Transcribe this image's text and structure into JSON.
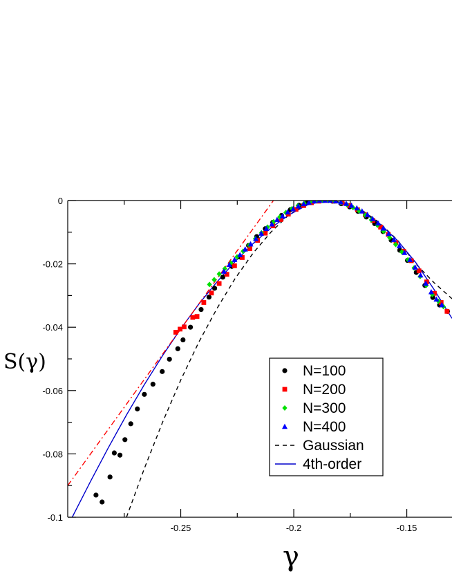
{
  "chart_data": {
    "type": "scatter",
    "xlabel": "γ",
    "ylabel": "S(γ)",
    "xlim": [
      -0.3,
      -0.13
    ],
    "ylim": [
      -0.1,
      0.0
    ],
    "x_ticks": [
      -0.25,
      -0.2,
      -0.15
    ],
    "x_tick_labels": [
      "-0.25",
      "-0.2",
      "-0.15"
    ],
    "y_ticks": [
      0,
      -0.02,
      -0.04,
      -0.06,
      -0.08,
      -0.1
    ],
    "y_tick_labels": [
      "0",
      "-0.02",
      "-0.04",
      "-0.06",
      "-0.08",
      "-0.1"
    ],
    "legend_position": "lower-right",
    "series": [
      {
        "name": "N=100",
        "marker": "circle",
        "color": "#000000",
        "points": [
          [
            -0.2875,
            -0.093
          ],
          [
            -0.2848,
            -0.0952
          ],
          [
            -0.2813,
            -0.0873
          ],
          [
            -0.2794,
            -0.0797
          ],
          [
            -0.2769,
            -0.0804
          ],
          [
            -0.2747,
            -0.0755
          ],
          [
            -0.2721,
            -0.0705
          ],
          [
            -0.2692,
            -0.0658
          ],
          [
            -0.2661,
            -0.0612
          ],
          [
            -0.2623,
            -0.058
          ],
          [
            -0.2582,
            -0.054
          ],
          [
            -0.255,
            -0.0501
          ],
          [
            -0.2513,
            -0.0468
          ],
          [
            -0.249,
            -0.044
          ],
          [
            -0.2457,
            -0.04
          ],
          [
            -0.241,
            -0.0344
          ],
          [
            -0.2375,
            -0.0305
          ],
          [
            -0.235,
            -0.0277
          ],
          [
            -0.2314,
            -0.0242
          ],
          [
            -0.2274,
            -0.0208
          ],
          [
            -0.2241,
            -0.0178
          ],
          [
            -0.22,
            -0.0142
          ],
          [
            -0.2164,
            -0.0114
          ],
          [
            -0.2126,
            -0.0089
          ],
          [
            -0.2093,
            -0.0069
          ],
          [
            -0.2054,
            -0.0047
          ],
          [
            -0.2015,
            -0.0029
          ],
          [
            -0.1977,
            -0.0015
          ],
          [
            -0.194,
            -0.0006
          ],
          [
            -0.1904,
            -0.0001
          ],
          [
            -0.1867,
            0.0
          ],
          [
            -0.1829,
            -0.0002
          ],
          [
            -0.179,
            -0.001
          ],
          [
            -0.1753,
            -0.002
          ],
          [
            -0.1716,
            -0.0034
          ],
          [
            -0.1679,
            -0.0052
          ],
          [
            -0.1642,
            -0.0073
          ],
          [
            -0.1605,
            -0.0098
          ],
          [
            -0.1569,
            -0.0125
          ],
          [
            -0.1531,
            -0.0157
          ],
          [
            -0.1497,
            -0.0189
          ],
          [
            -0.1458,
            -0.0227
          ],
          [
            -0.142,
            -0.0268
          ],
          [
            -0.1385,
            -0.0306
          ],
          [
            -0.1355,
            -0.033
          ],
          [
            -0.132,
            -0.035
          ]
        ]
      },
      {
        "name": "N=200",
        "marker": "square",
        "color": "#ff0000",
        "points": [
          [
            -0.2522,
            -0.0416
          ],
          [
            -0.2503,
            -0.0406
          ],
          [
            -0.2485,
            -0.0399
          ],
          [
            -0.2447,
            -0.0369
          ],
          [
            -0.2428,
            -0.0366
          ],
          [
            -0.2398,
            -0.0322
          ],
          [
            -0.2364,
            -0.0292
          ],
          [
            -0.233,
            -0.0262
          ],
          [
            -0.2296,
            -0.0233
          ],
          [
            -0.2262,
            -0.0206
          ],
          [
            -0.2228,
            -0.018
          ],
          [
            -0.2194,
            -0.0152
          ],
          [
            -0.216,
            -0.0126
          ],
          [
            -0.2126,
            -0.0103
          ],
          [
            -0.2092,
            -0.008
          ],
          [
            -0.2058,
            -0.006
          ],
          [
            -0.2024,
            -0.0043
          ],
          [
            -0.199,
            -0.0028
          ],
          [
            -0.1956,
            -0.0016
          ],
          [
            -0.1922,
            -0.0007
          ],
          [
            -0.1888,
            -0.0002
          ],
          [
            -0.1854,
            0.0
          ],
          [
            -0.182,
            -0.0002
          ],
          [
            -0.1786,
            -0.0007
          ],
          [
            -0.1752,
            -0.0016
          ],
          [
            -0.1718,
            -0.0029
          ],
          [
            -0.1684,
            -0.0045
          ],
          [
            -0.165,
            -0.0063
          ],
          [
            -0.1616,
            -0.0084
          ],
          [
            -0.1582,
            -0.0107
          ],
          [
            -0.1548,
            -0.0133
          ],
          [
            -0.1514,
            -0.016
          ],
          [
            -0.148,
            -0.019
          ],
          [
            -0.1446,
            -0.0222
          ],
          [
            -0.1412,
            -0.0257
          ],
          [
            -0.1378,
            -0.0293
          ],
          [
            -0.1348,
            -0.0322
          ],
          [
            -0.1322,
            -0.035
          ]
        ]
      },
      {
        "name": "N=300",
        "marker": "diamond",
        "color": "#00e000",
        "points": [
          [
            -0.2373,
            -0.0265
          ],
          [
            -0.2352,
            -0.025
          ],
          [
            -0.233,
            -0.0232
          ],
          [
            -0.2305,
            -0.0215
          ],
          [
            -0.2278,
            -0.0197
          ],
          [
            -0.2251,
            -0.0178
          ],
          [
            -0.2224,
            -0.016
          ],
          [
            -0.2197,
            -0.0141
          ],
          [
            -0.217,
            -0.0121
          ],
          [
            -0.2143,
            -0.0102
          ],
          [
            -0.2116,
            -0.0084
          ],
          [
            -0.2089,
            -0.0067
          ],
          [
            -0.2062,
            -0.0052
          ],
          [
            -0.2035,
            -0.0038
          ],
          [
            -0.2008,
            -0.0026
          ],
          [
            -0.1981,
            -0.0016
          ],
          [
            -0.1954,
            -0.0009
          ],
          [
            -0.1927,
            -0.0004
          ],
          [
            -0.19,
            -0.0001
          ],
          [
            -0.1873,
            0.0
          ],
          [
            -0.1846,
            0.0
          ],
          [
            -0.1819,
            -0.0002
          ],
          [
            -0.1792,
            -0.0007
          ],
          [
            -0.1765,
            -0.0013
          ],
          [
            -0.1738,
            -0.0022
          ],
          [
            -0.1711,
            -0.0033
          ],
          [
            -0.1684,
            -0.0046
          ],
          [
            -0.1657,
            -0.0061
          ],
          [
            -0.163,
            -0.0078
          ],
          [
            -0.1603,
            -0.0097
          ],
          [
            -0.1576,
            -0.0117
          ],
          [
            -0.1549,
            -0.0139
          ],
          [
            -0.1522,
            -0.0162
          ],
          [
            -0.1495,
            -0.0187
          ],
          [
            -0.1468,
            -0.0213
          ],
          [
            -0.1441,
            -0.024
          ],
          [
            -0.1414,
            -0.0268
          ],
          [
            -0.1387,
            -0.0297
          ],
          [
            -0.136,
            -0.0318
          ],
          [
            -0.1338,
            -0.0335
          ]
        ]
      },
      {
        "name": "N=400",
        "marker": "triangle",
        "color": "#0000ff",
        "points": [
          [
            -0.2309,
            -0.0224
          ],
          [
            -0.2285,
            -0.0203
          ],
          [
            -0.2262,
            -0.0187
          ],
          [
            -0.2238,
            -0.0172
          ],
          [
            -0.2215,
            -0.0154
          ],
          [
            -0.2191,
            -0.0138
          ],
          [
            -0.2168,
            -0.0121
          ],
          [
            -0.2144,
            -0.0104
          ],
          [
            -0.2121,
            -0.0089
          ],
          [
            -0.2097,
            -0.0075
          ],
          [
            -0.2074,
            -0.0061
          ],
          [
            -0.205,
            -0.0049
          ],
          [
            -0.2027,
            -0.0037
          ],
          [
            -0.2003,
            -0.0027
          ],
          [
            -0.198,
            -0.0018
          ],
          [
            -0.1956,
            -0.0011
          ],
          [
            -0.1933,
            -0.0006
          ],
          [
            -0.1909,
            -0.0002
          ],
          [
            -0.1886,
            0.0
          ],
          [
            -0.1862,
            0.0
          ],
          [
            -0.1839,
            0.0
          ],
          [
            -0.1815,
            -0.0002
          ],
          [
            -0.1792,
            -0.0005
          ],
          [
            -0.1768,
            -0.001
          ],
          [
            -0.1745,
            -0.0016
          ],
          [
            -0.1721,
            -0.0024
          ],
          [
            -0.1698,
            -0.0034
          ],
          [
            -0.1674,
            -0.0045
          ],
          [
            -0.1651,
            -0.0058
          ],
          [
            -0.1627,
            -0.0072
          ],
          [
            -0.1604,
            -0.0088
          ],
          [
            -0.158,
            -0.0105
          ],
          [
            -0.1557,
            -0.0124
          ],
          [
            -0.1533,
            -0.0144
          ],
          [
            -0.151,
            -0.0165
          ],
          [
            -0.1486,
            -0.0187
          ],
          [
            -0.1463,
            -0.0211
          ],
          [
            -0.1439,
            -0.0236
          ],
          [
            -0.1416,
            -0.0262
          ],
          [
            -0.1392,
            -0.0289
          ],
          [
            -0.1369,
            -0.0312
          ],
          [
            -0.1345,
            -0.033
          ]
        ]
      },
      {
        "name": "Gaussian",
        "line": "dashed",
        "color": "#000000",
        "points": [
          [
            -0.274,
            -0.1
          ],
          [
            -0.266,
            -0.0844
          ],
          [
            -0.258,
            -0.0699
          ],
          [
            -0.25,
            -0.0567
          ],
          [
            -0.242,
            -0.0447
          ],
          [
            -0.234,
            -0.0341
          ],
          [
            -0.226,
            -0.0247
          ],
          [
            -0.218,
            -0.0166
          ],
          [
            -0.21,
            -0.0099
          ],
          [
            -0.202,
            -0.0044
          ],
          [
            -0.194,
            -0.0011
          ],
          [
            -0.186,
            0.0
          ],
          [
            -0.178,
            -0.0006
          ],
          [
            -0.17,
            -0.003
          ],
          [
            -0.162,
            -0.007
          ],
          [
            -0.154,
            -0.0126
          ],
          [
            -0.146,
            -0.02
          ],
          [
            -0.138,
            -0.0259
          ],
          [
            -0.13,
            -0.031
          ]
        ]
      },
      {
        "name": "4th-order",
        "line": "solid",
        "color": "#0000cc",
        "points": [
          [
            -0.298,
            -0.1
          ],
          [
            -0.29,
            -0.0888
          ],
          [
            -0.282,
            -0.078
          ],
          [
            -0.274,
            -0.0677
          ],
          [
            -0.266,
            -0.058
          ],
          [
            -0.258,
            -0.0489
          ],
          [
            -0.25,
            -0.0405
          ],
          [
            -0.242,
            -0.0327
          ],
          [
            -0.234,
            -0.0257
          ],
          [
            -0.226,
            -0.0193
          ],
          [
            -0.218,
            -0.0136
          ],
          [
            -0.21,
            -0.0086
          ],
          [
            -0.202,
            -0.0045
          ],
          [
            -0.194,
            -0.0014
          ],
          [
            -0.186,
            0.0
          ],
          [
            -0.178,
            -0.0009
          ],
          [
            -0.17,
            -0.0035
          ],
          [
            -0.162,
            -0.0073
          ],
          [
            -0.154,
            -0.0127
          ],
          [
            -0.146,
            -0.0196
          ],
          [
            -0.138,
            -0.028
          ],
          [
            -0.13,
            -0.0372
          ]
        ]
      },
      {
        "name": "",
        "line": "dashdot",
        "color": "#ff0000",
        "points": [
          [
            -0.3,
            -0.09
          ],
          [
            -0.209,
            0.0
          ]
        ]
      }
    ],
    "legend": {
      "entries": [
        "N=100",
        "N=200",
        "N=300",
        "N=400",
        "Gaussian",
        "4th-order"
      ]
    }
  }
}
